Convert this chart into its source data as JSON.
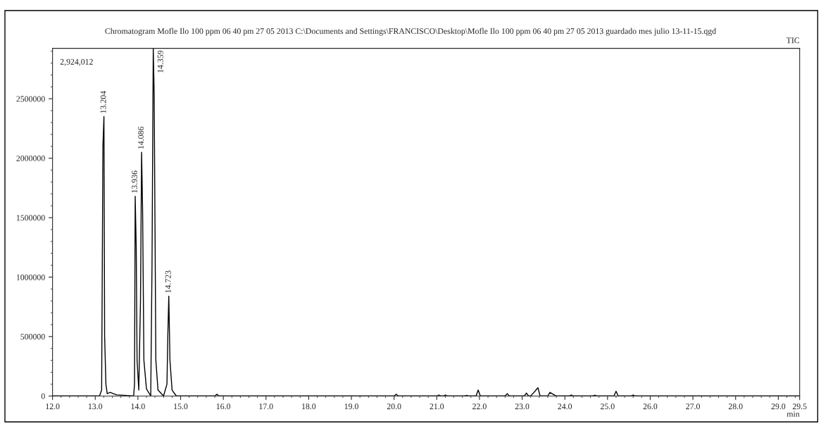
{
  "chart_data": {
    "type": "line",
    "title": "Chromatogram Mofle Ilo 100 ppm 06 40 pm 27 05 2013 C:\\Documents and Settings\\FRANCISCO\\Desktop\\Mofle Ilo 100 ppm 06 40 pm 27 05 2013 guardado mes julio 13-11-15.qgd",
    "xlabel": "min",
    "x": [
      12.0,
      13.1,
      13.15,
      13.18,
      13.204,
      13.22,
      13.25,
      13.28,
      13.35,
      13.5,
      13.9,
      13.92,
      13.936,
      13.96,
      13.98,
      14.02,
      14.06,
      14.086,
      14.11,
      14.14,
      14.2,
      14.3,
      14.33,
      14.359,
      14.38,
      14.42,
      14.47,
      14.6,
      14.68,
      14.7,
      14.723,
      14.75,
      14.8,
      14.9,
      15.8,
      15.85,
      15.9,
      20.0,
      20.05,
      20.1,
      21.0,
      21.05,
      21.1,
      21.15,
      21.2,
      21.25,
      21.65,
      21.7,
      21.75,
      21.92,
      21.97,
      22.02,
      22.6,
      22.65,
      22.7,
      23.05,
      23.1,
      23.15,
      23.2,
      23.25,
      23.3,
      23.37,
      23.42,
      23.6,
      23.65,
      23.75,
      23.8,
      24.1,
      24.15,
      24.2,
      24.65,
      24.7,
      24.75,
      25.15,
      25.2,
      25.25,
      25.55,
      25.6,
      25.65,
      29.5
    ],
    "series": [
      {
        "color": "#000000",
        "values": [
          0,
          0,
          50000,
          2100000,
          2350000,
          500000,
          100000,
          20000,
          30000,
          10000,
          0,
          100000,
          1680000,
          1250000,
          300000,
          50000,
          800000,
          2050000,
          1550000,
          300000,
          60000,
          0,
          1100000,
          2924012,
          2550000,
          300000,
          50000,
          0,
          100000,
          500000,
          840000,
          300000,
          50000,
          0,
          0,
          15000,
          0,
          0,
          15000,
          0,
          0,
          8000,
          0,
          0,
          8000,
          0,
          0,
          5000,
          0,
          0,
          50000,
          0,
          0,
          20000,
          0,
          0,
          25000,
          0,
          0,
          20000,
          40000,
          70000,
          0,
          0,
          30000,
          10000,
          0,
          0,
          8000,
          0,
          0,
          6000,
          0,
          0,
          40000,
          0,
          0,
          8000,
          0,
          0
        ]
      }
    ],
    "xlim": [
      12.0,
      29.5
    ],
    "xticks": [
      {
        "value": 12,
        "label": "12.0"
      },
      {
        "value": 13,
        "label": "13.0"
      },
      {
        "value": 14,
        "label": "14.0"
      },
      {
        "value": 15,
        "label": "15.0"
      },
      {
        "value": 16,
        "label": "16.0"
      },
      {
        "value": 17,
        "label": "17.0"
      },
      {
        "value": 18,
        "label": "18.0"
      },
      {
        "value": 19,
        "label": "19.0"
      },
      {
        "value": 20,
        "label": "20.0"
      },
      {
        "value": 21,
        "label": "21.0"
      },
      {
        "value": 22,
        "label": "22.0"
      },
      {
        "value": 23,
        "label": "23.0"
      },
      {
        "value": 24,
        "label": "24.0"
      },
      {
        "value": 25,
        "label": "25.0"
      },
      {
        "value": 26,
        "label": "26.0"
      },
      {
        "value": 27,
        "label": "27.0"
      },
      {
        "value": 28,
        "label": "28.0"
      },
      {
        "value": 29,
        "label": "29.0"
      },
      {
        "value": 29.5,
        "label": "29.5"
      }
    ],
    "ylim": [
      0,
      2924012
    ],
    "yticks": [
      0,
      500000,
      1000000,
      1500000,
      2000000,
      2500000
    ],
    "grid": false,
    "legend": false,
    "annotations": [
      "TIC",
      "2,924,012",
      {
        "text": "13.204",
        "x": 13.204,
        "y": 2350000
      },
      {
        "text": "13.936",
        "x": 13.936,
        "y": 1680000
      },
      {
        "text": "14.086",
        "x": 14.086,
        "y": 2050000
      },
      {
        "text": "14.359",
        "x": 14.359,
        "y": 2924012
      },
      {
        "text": "14.723",
        "x": 14.723,
        "y": 840000
      }
    ]
  }
}
